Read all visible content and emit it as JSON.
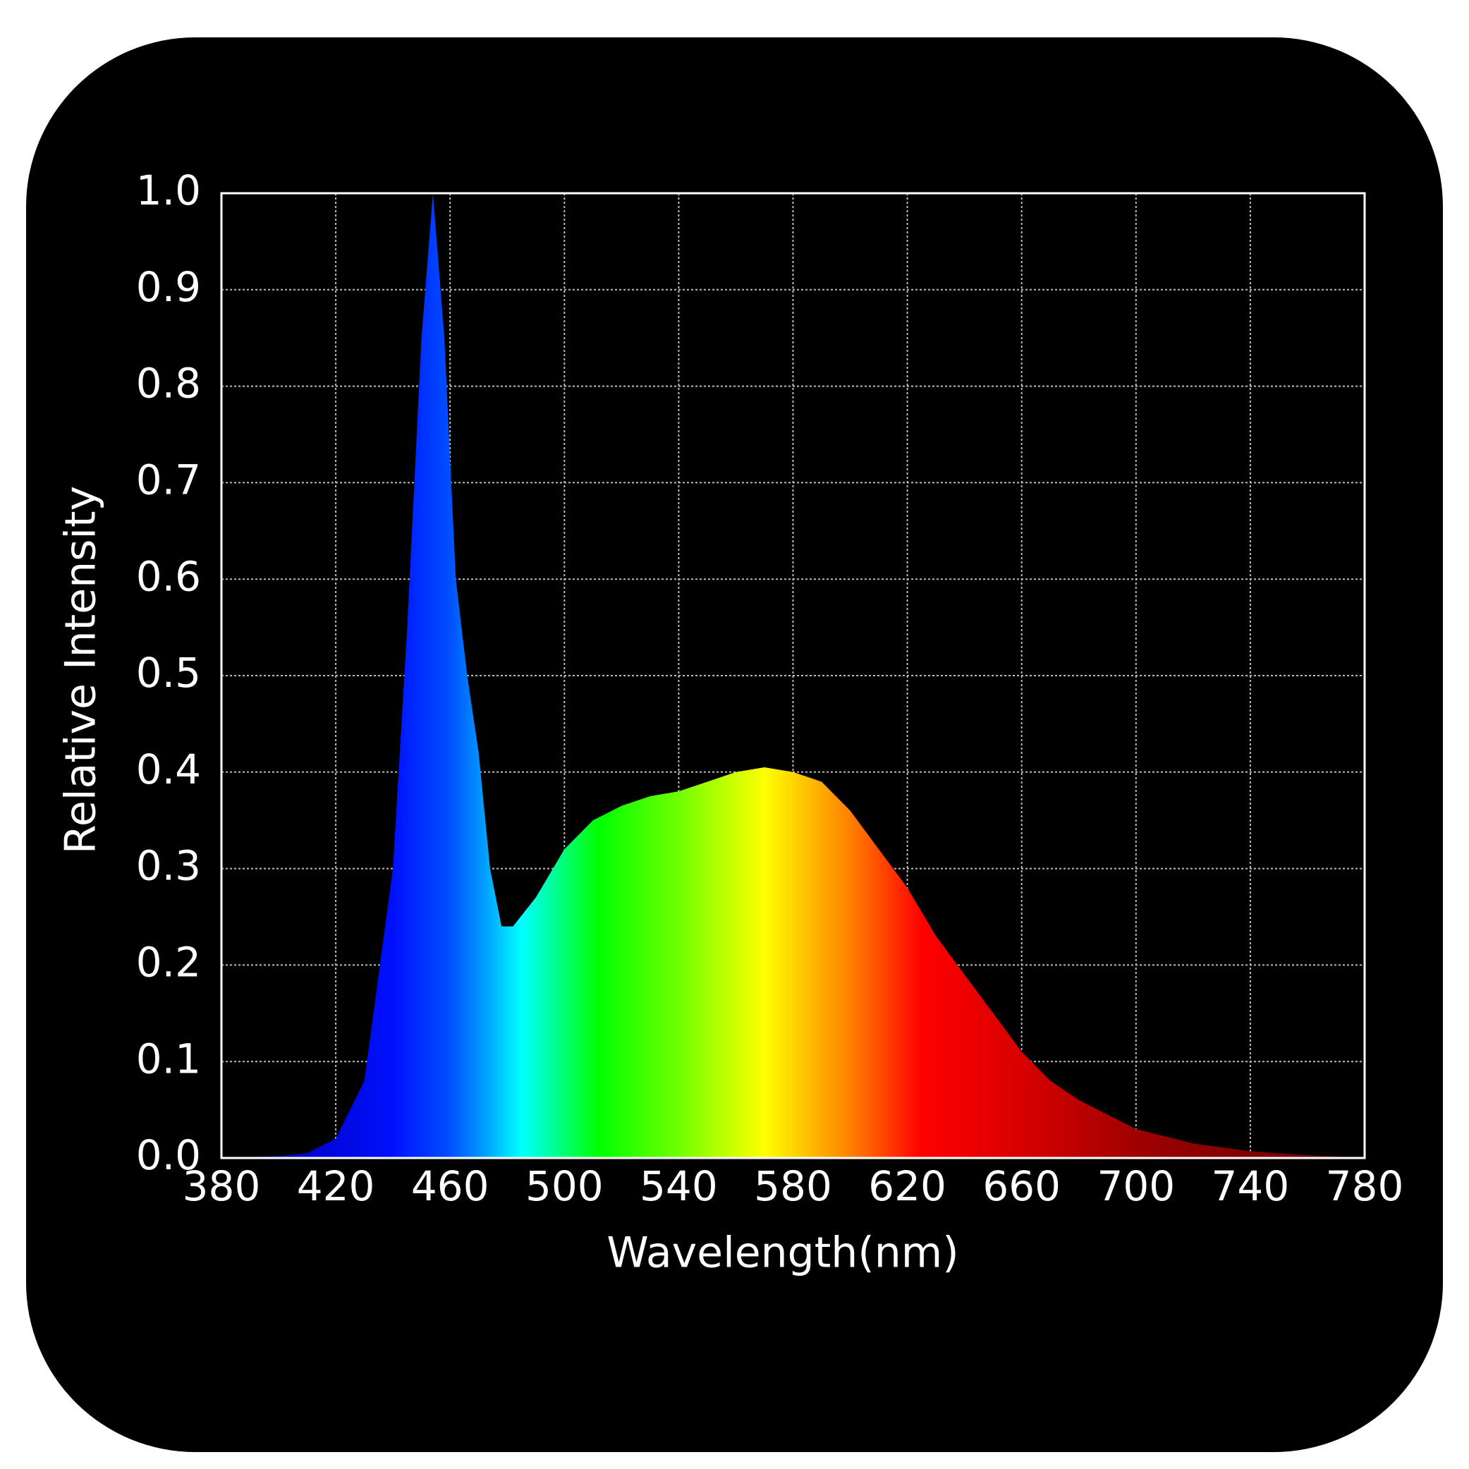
{
  "chart_data": {
    "type": "area",
    "xlabel": "Wavelength(nm)",
    "ylabel": "Relative Intensity",
    "x": [
      380,
      400,
      410,
      420,
      430,
      440,
      445,
      450,
      454,
      458,
      462,
      466,
      470,
      474,
      478,
      482,
      490,
      500,
      510,
      520,
      530,
      540,
      550,
      560,
      570,
      580,
      590,
      600,
      610,
      620,
      630,
      640,
      650,
      660,
      670,
      680,
      690,
      700,
      720,
      740,
      760,
      780
    ],
    "values": [
      0.0,
      0.002,
      0.005,
      0.02,
      0.08,
      0.3,
      0.55,
      0.85,
      1.0,
      0.85,
      0.6,
      0.5,
      0.42,
      0.3,
      0.24,
      0.24,
      0.27,
      0.32,
      0.35,
      0.365,
      0.375,
      0.38,
      0.39,
      0.4,
      0.405,
      0.4,
      0.39,
      0.36,
      0.32,
      0.28,
      0.23,
      0.19,
      0.15,
      0.11,
      0.08,
      0.06,
      0.045,
      0.03,
      0.015,
      0.007,
      0.003,
      0.0
    ],
    "fill_gradient": [
      {
        "x": 400,
        "color": "#0000c0"
      },
      {
        "x": 440,
        "color": "#0010ff"
      },
      {
        "x": 460,
        "color": "#0050ff"
      },
      {
        "x": 470,
        "color": "#0090ff"
      },
      {
        "x": 485,
        "color": "#00ffff"
      },
      {
        "x": 512,
        "color": "#00ff00"
      },
      {
        "x": 540,
        "color": "#70ff00"
      },
      {
        "x": 570,
        "color": "#ffff00"
      },
      {
        "x": 600,
        "color": "#ff8000"
      },
      {
        "x": 625,
        "color": "#ff0000"
      },
      {
        "x": 660,
        "color": "#d80000"
      },
      {
        "x": 700,
        "color": "#a00000"
      },
      {
        "x": 780,
        "color": "#600000"
      }
    ],
    "xlim": [
      380,
      780
    ],
    "xticks": [
      380,
      420,
      460,
      500,
      540,
      580,
      620,
      660,
      700,
      740,
      780
    ],
    "ylim": [
      0,
      1
    ],
    "yticks": [
      {
        "value": 0,
        "label": "0.0"
      },
      0.1,
      0.2,
      0.3,
      0.4,
      0.5,
      0.6,
      0.7,
      0.8,
      0.9,
      {
        "value": 1,
        "label": "1.0"
      }
    ],
    "grid": true
  }
}
